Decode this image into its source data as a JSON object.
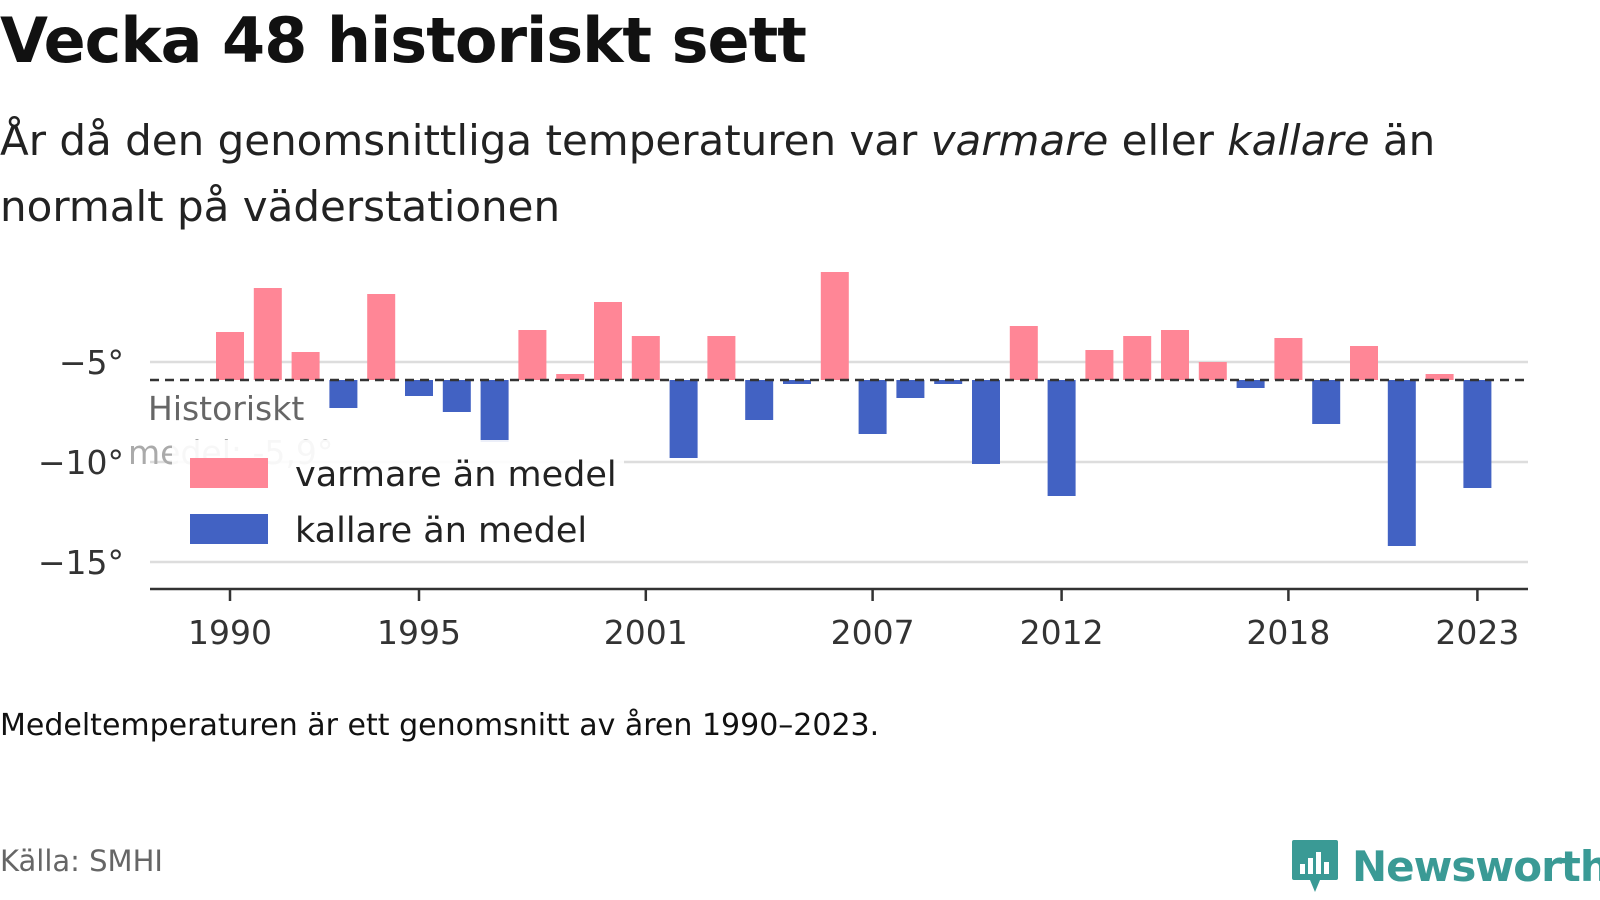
{
  "header": {
    "title": "Vecka 48 historiskt sett",
    "subtitle_part1": "År då den genomsnittliga temperaturen var ",
    "subtitle_warm": "varmare",
    "subtitle_part2": " eller ",
    "subtitle_cold": "kallare",
    "subtitle_part3": " än normalt på väderstationen"
  },
  "footer": {
    "note": "Medeltemperaturen är ett genomsnitt av åren 1990–2023.",
    "source": "Källa: SMHI",
    "brand": "Newsworthy"
  },
  "colors": {
    "warm": "#ff8696",
    "cold": "#4262c3",
    "brand": "#3a9a95"
  },
  "chart_data": {
    "type": "bar",
    "baseline": -5.9,
    "baseline_label_line1": "Historiskt",
    "baseline_label_line2": "medel: -5,9°",
    "y_ticks": [
      -5,
      -10,
      -15
    ],
    "y_tick_labels": [
      "−5°",
      "−10°",
      "−15°"
    ],
    "ylim": [
      -16.5,
      0
    ],
    "x_ticks": [
      "1990",
      "1995",
      "2001",
      "2007",
      "2012",
      "2018",
      "2023"
    ],
    "legend": [
      {
        "label": "varmare än medel",
        "color": "#ff8696"
      },
      {
        "label": "kallare än medel",
        "color": "#4262c3"
      }
    ],
    "years": [
      1990,
      1991,
      1992,
      1993,
      1994,
      1995,
      1996,
      1997,
      1998,
      1999,
      2000,
      2001,
      2002,
      2003,
      2004,
      2005,
      2006,
      2007,
      2008,
      2009,
      2010,
      2011,
      2012,
      2013,
      2014,
      2015,
      2016,
      2017,
      2018,
      2019,
      2020,
      2021,
      2022,
      2023
    ],
    "values": [
      -3.5,
      -1.3,
      -4.5,
      -7.3,
      -1.6,
      -6.7,
      -7.5,
      -9.0,
      -3.4,
      -5.6,
      -2.0,
      -3.7,
      -9.8,
      -3.7,
      -7.9,
      -6.1,
      -0.5,
      -8.6,
      -6.8,
      -6.1,
      -10.1,
      -3.2,
      -11.7,
      -4.4,
      -3.7,
      -3.4,
      -5.0,
      -6.3,
      -3.8,
      -8.1,
      -4.2,
      -14.2,
      -5.6,
      -11.3
    ]
  }
}
